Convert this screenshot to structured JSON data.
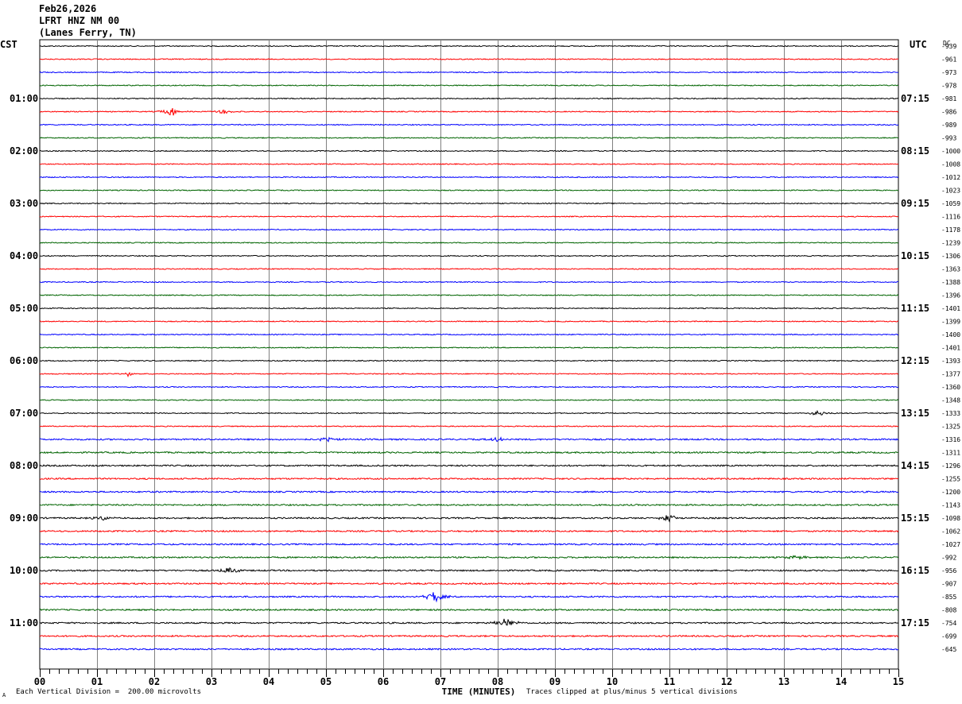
{
  "header": {
    "date": "Feb26,2026",
    "station": "LFRT HNZ NM 00",
    "location": "(Lanes Ferry, TN)"
  },
  "footer": {
    "vertical_division": "Each Vertical Division =  200.00 microvolts",
    "clip_note": "Traces clipped at plus/minus 5 vertical divisions",
    "corner_mark": "A"
  },
  "chart_data": {
    "type": "line",
    "title": "",
    "xlabel": "TIME (MINUTES)",
    "left_axis_label": "CST",
    "right_axis_label": "UTC",
    "dc_label": "DC",
    "xlim": [
      0,
      15
    ],
    "x_ticks": [
      "00",
      "01",
      "02",
      "03",
      "04",
      "05",
      "06",
      "07",
      "08",
      "09",
      "10",
      "11",
      "12",
      "13",
      "14",
      "15"
    ],
    "grid": true,
    "trace_colors": [
      "#000000",
      "#ff0000",
      "#0000ff",
      "#006400"
    ],
    "left_hour_labels": [
      "01:00",
      "02:00",
      "03:00",
      "04:00",
      "05:00",
      "06:00",
      "07:00",
      "08:00",
      "09:00",
      "10:00",
      "11:00"
    ],
    "right_hour_labels": [
      "07:15",
      "08:15",
      "09:15",
      "10:15",
      "11:15",
      "12:15",
      "13:15",
      "14:15",
      "15:15",
      "16:15",
      "17:15"
    ],
    "dc_offsets": [
      -939,
      -961,
      -973,
      -978,
      -981,
      -986,
      -989,
      -993,
      -1000,
      -1008,
      -1012,
      -1023,
      -1059,
      -1116,
      -1178,
      -1239,
      -1306,
      -1363,
      -1388,
      -1396,
      -1401,
      -1399,
      -1400,
      -1401,
      -1393,
      -1377,
      -1360,
      -1348,
      -1333,
      -1325,
      -1316,
      -1311,
      -1296,
      -1255,
      -1200,
      -1143,
      -1098,
      -1062,
      -1027,
      -992,
      -956,
      -907,
      -855,
      -808,
      -754,
      -699,
      -645
    ],
    "events": [
      {
        "trace": 5,
        "minute": 2.3,
        "amplitude": 6
      },
      {
        "trace": 5,
        "minute": 3.2,
        "amplitude": 3
      },
      {
        "trace": 25,
        "minute": 1.55,
        "amplitude": 3
      },
      {
        "trace": 28,
        "minute": 13.6,
        "amplitude": 4
      },
      {
        "trace": 30,
        "minute": 5.0,
        "amplitude": 3
      },
      {
        "trace": 30,
        "minute": 8.0,
        "amplitude": 3
      },
      {
        "trace": 36,
        "minute": 1.1,
        "amplitude": 3
      },
      {
        "trace": 36,
        "minute": 11.0,
        "amplitude": 5
      },
      {
        "trace": 39,
        "minute": 13.2,
        "amplitude": 3
      },
      {
        "trace": 40,
        "minute": 3.3,
        "amplitude": 5
      },
      {
        "trace": 42,
        "minute": 6.9,
        "amplitude": 8
      },
      {
        "trace": 44,
        "minute": 8.15,
        "amplitude": 7
      }
    ]
  }
}
